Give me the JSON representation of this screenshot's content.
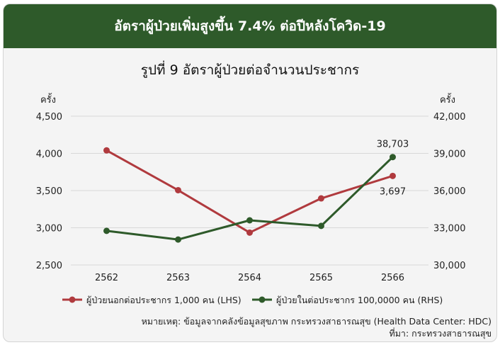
{
  "header": {
    "title": "อัตราผู้ป่วยเพิ่มสูงขึ้น 7.4% ต่อปีหลังโควิด-19"
  },
  "footnote": "หมายเหตุ: ข้อมูลจากคลังข้อมูลสุขภาพ กระทรวงสาธารณสุข (Health Data Center: HDC)",
  "source": "ที่มา: กระทรวงสาธารณสุข",
  "colors": {
    "header_bg": "#2e5a2a",
    "series_lhs": "#b03a3e",
    "series_rhs": "#2e5a2a"
  },
  "chart_data": {
    "type": "line",
    "title": "รูปที่ 9 อัตราผู้ป่วยต่อจำนวนประชากร",
    "categories": [
      "2562",
      "2563",
      "2564",
      "2565",
      "2566"
    ],
    "y_left": {
      "unit_label": "ครั้ง",
      "ylim": [
        2500,
        4500
      ],
      "ticks": [
        "2,500",
        "3,000",
        "3,500",
        "4,000",
        "4,500"
      ]
    },
    "y_right": {
      "unit_label": "ครั้ง",
      "ylim": [
        30000,
        42000
      ],
      "ticks": [
        "30,000",
        "33,000",
        "36,000",
        "39,000",
        "42,000"
      ]
    },
    "series": [
      {
        "name": "ผู้ป่วยนอกต่อประชากร 1,000 คน (LHS)",
        "axis": "left",
        "color": "#b03a3e",
        "values": [
          4040,
          3505,
          2935,
          3395,
          3697
        ],
        "end_label": "3,697"
      },
      {
        "name": "ผู้ป่วยในต่อประชากร 100,0000 คน (RHS)",
        "axis": "right",
        "color": "#2e5a2a",
        "values": [
          32750,
          32050,
          33600,
          33150,
          38703
        ],
        "end_label": "38,703"
      }
    ],
    "grid": "horizontal",
    "legend": "bottom"
  }
}
